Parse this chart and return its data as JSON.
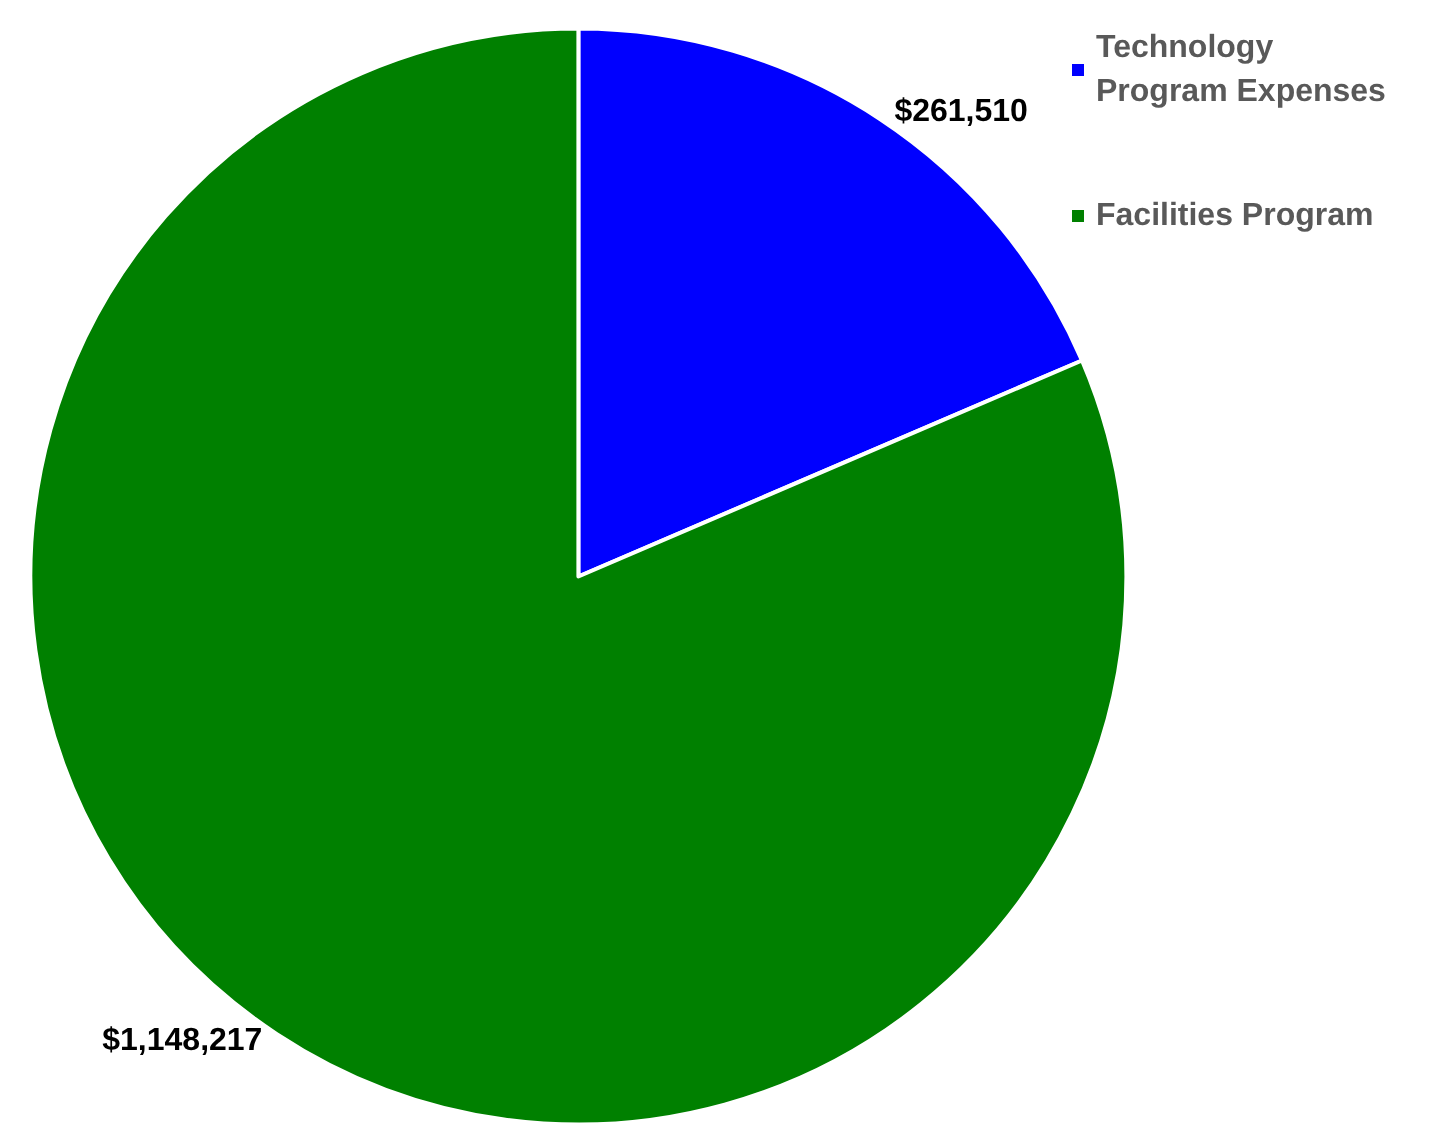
{
  "chart_data": {
    "type": "pie",
    "categories": [
      "Technology Program Expenses",
      "Facilities Program"
    ],
    "values": [
      261510,
      1148217
    ],
    "colors": [
      "#0000ff",
      "#008000"
    ],
    "value_labels": [
      "$261,510",
      "$1,148,217"
    ],
    "legend": "top right"
  }
}
